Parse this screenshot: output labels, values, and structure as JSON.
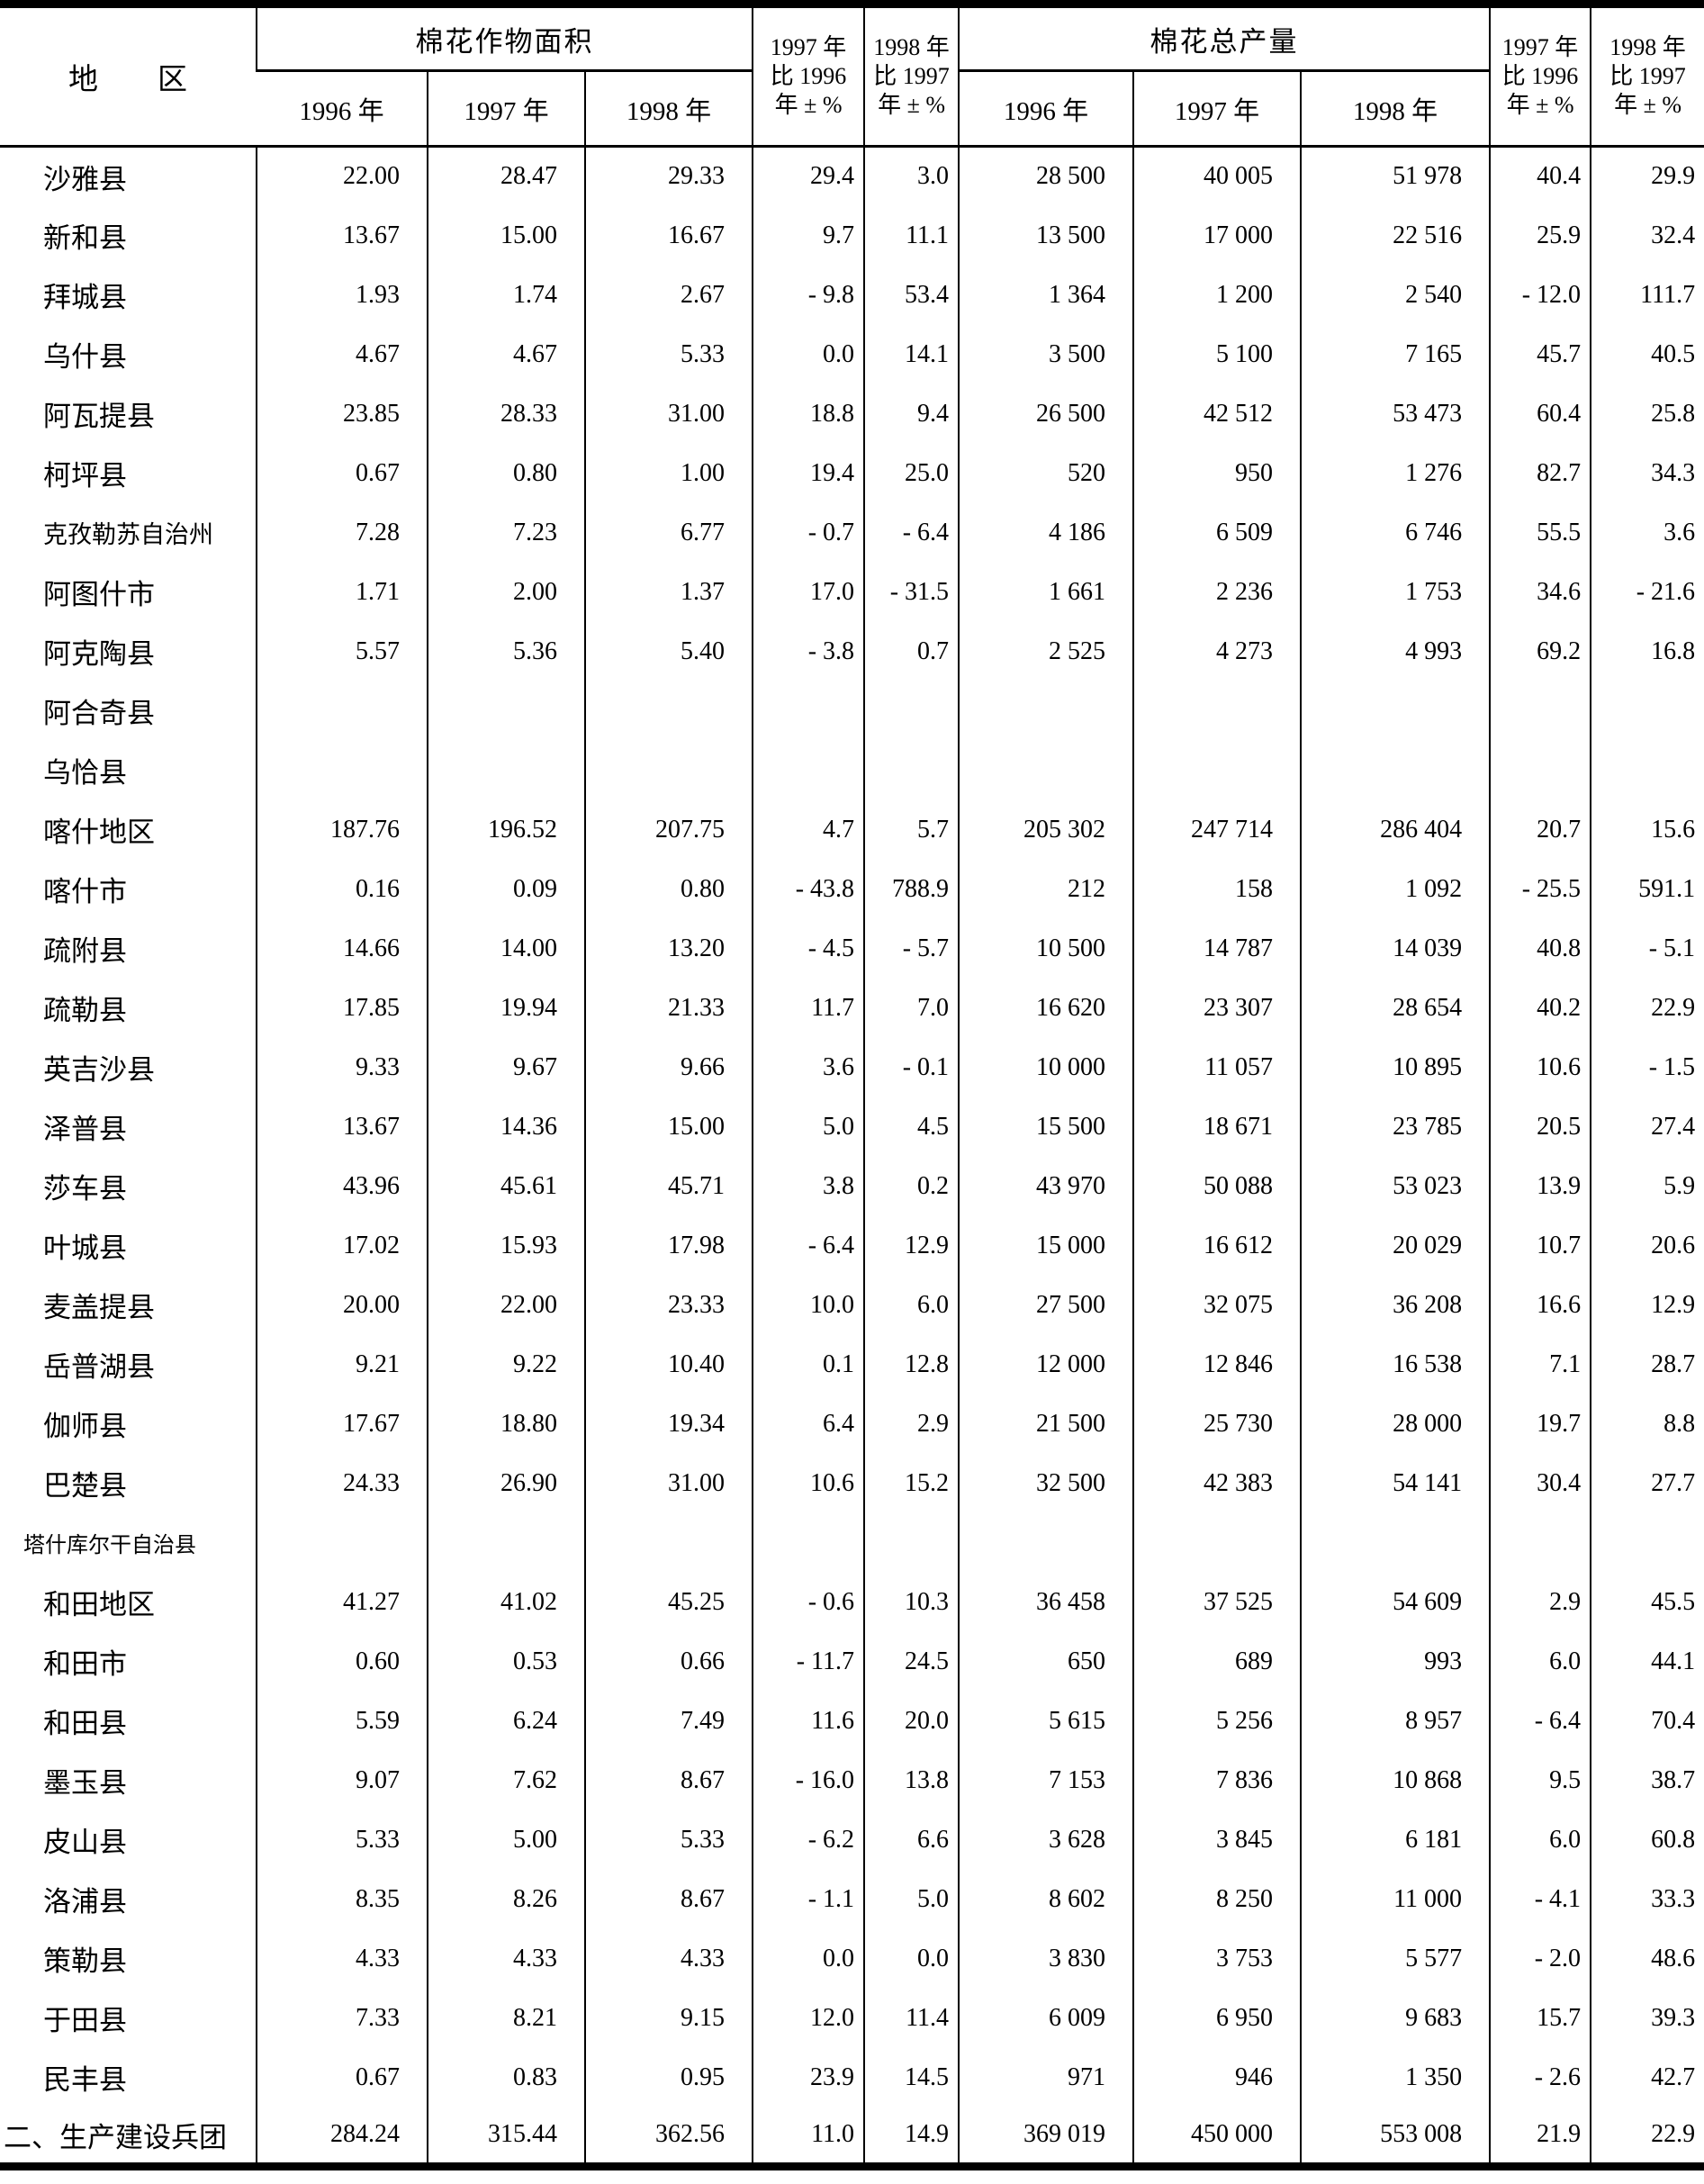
{
  "page": {
    "background": "#ffffff",
    "text_color": "#000000"
  },
  "table": {
    "columns": [
      "region",
      "area_1996",
      "area_1997",
      "area_1998",
      "area_pct_1997_vs_1996",
      "area_pct_1998_vs_1997",
      "prod_1996",
      "prod_1997",
      "prod_1998",
      "prod_pct_1997_vs_1996",
      "prod_pct_1998_vs_1997"
    ],
    "header": {
      "region": "地　　区",
      "area_group": "棉花作物面积",
      "production_group": "棉花总产量",
      "area_years": [
        "1996 年",
        "1997 年",
        "1998 年"
      ],
      "production_years": [
        "1996 年",
        "1997 年",
        "1998 年"
      ],
      "pct_1997_vs_1996": "1997 年\n比 1996\n年 ± %",
      "pct_1998_vs_1997": "1998 年\n比 1997\n年 ± %"
    },
    "rows": [
      {
        "region": "沙雅县",
        "cells": [
          "22.00",
          "28.47",
          "29.33",
          "29.4",
          "3.0",
          "28 500",
          "40 005",
          "51 978",
          "40.4",
          "29.9"
        ]
      },
      {
        "region": "新和县",
        "cells": [
          "13.67",
          "15.00",
          "16.67",
          "9.7",
          "11.1",
          "13 500",
          "17 000",
          "22 516",
          "25.9",
          "32.4"
        ]
      },
      {
        "region": "拜城县",
        "cells": [
          "1.93",
          "1.74",
          "2.67",
          "- 9.8",
          "53.4",
          "1 364",
          "1 200",
          "2 540",
          "- 12.0",
          "111.7"
        ]
      },
      {
        "region": "乌什县",
        "cells": [
          "4.67",
          "4.67",
          "5.33",
          "0.0",
          "14.1",
          "3 500",
          "5 100",
          "7 165",
          "45.7",
          "40.5"
        ]
      },
      {
        "region": "阿瓦提县",
        "cells": [
          "23.85",
          "28.33",
          "31.00",
          "18.8",
          "9.4",
          "26 500",
          "42 512",
          "53 473",
          "60.4",
          "25.8"
        ]
      },
      {
        "region": "柯坪县",
        "cells": [
          "0.67",
          "0.80",
          "1.00",
          "19.4",
          "25.0",
          "520",
          "950",
          "1 276",
          "82.7",
          "34.3"
        ]
      },
      {
        "region": "克孜勒苏自治州",
        "cells": [
          "7.28",
          "7.23",
          "6.77",
          "- 0.7",
          "- 6.4",
          "4 186",
          "6 509",
          "6 746",
          "55.5",
          "3.6"
        ]
      },
      {
        "region": "阿图什市",
        "cells": [
          "1.71",
          "2.00",
          "1.37",
          "17.0",
          "- 31.5",
          "1 661",
          "2 236",
          "1 753",
          "34.6",
          "- 21.6"
        ]
      },
      {
        "region": "阿克陶县",
        "cells": [
          "5.57",
          "5.36",
          "5.40",
          "- 3.8",
          "0.7",
          "2 525",
          "4 273",
          "4 993",
          "69.2",
          "16.8"
        ]
      },
      {
        "region": "阿合奇县",
        "cells": [
          "",
          "",
          "",
          "",
          "",
          "",
          "",
          "",
          "",
          ""
        ]
      },
      {
        "region": "乌恰县",
        "cells": [
          "",
          "",
          "",
          "",
          "",
          "",
          "",
          "",
          "",
          ""
        ]
      },
      {
        "region": "喀什地区",
        "cells": [
          "187.76",
          "196.52",
          "207.75",
          "4.7",
          "5.7",
          "205 302",
          "247 714",
          "286 404",
          "20.7",
          "15.6"
        ]
      },
      {
        "region": "喀什市",
        "cells": [
          "0.16",
          "0.09",
          "0.80",
          "- 43.8",
          "788.9",
          "212",
          "158",
          "1 092",
          "- 25.5",
          "591.1"
        ]
      },
      {
        "region": "疏附县",
        "cells": [
          "14.66",
          "14.00",
          "13.20",
          "- 4.5",
          "- 5.7",
          "10 500",
          "14 787",
          "14 039",
          "40.8",
          "- 5.1"
        ]
      },
      {
        "region": "疏勒县",
        "cells": [
          "17.85",
          "19.94",
          "21.33",
          "11.7",
          "7.0",
          "16 620",
          "23 307",
          "28 654",
          "40.2",
          "22.9"
        ]
      },
      {
        "region": "英吉沙县",
        "cells": [
          "9.33",
          "9.67",
          "9.66",
          "3.6",
          "- 0.1",
          "10 000",
          "11 057",
          "10 895",
          "10.6",
          "- 1.5"
        ]
      },
      {
        "region": "泽普县",
        "cells": [
          "13.67",
          "14.36",
          "15.00",
          "5.0",
          "4.5",
          "15 500",
          "18 671",
          "23 785",
          "20.5",
          "27.4"
        ]
      },
      {
        "region": "莎车县",
        "cells": [
          "43.96",
          "45.61",
          "45.71",
          "3.8",
          "0.2",
          "43 970",
          "50 088",
          "53 023",
          "13.9",
          "5.9"
        ]
      },
      {
        "region": "叶城县",
        "cells": [
          "17.02",
          "15.93",
          "17.98",
          "- 6.4",
          "12.9",
          "15 000",
          "16 612",
          "20 029",
          "10.7",
          "20.6"
        ]
      },
      {
        "region": "麦盖提县",
        "cells": [
          "20.00",
          "22.00",
          "23.33",
          "10.0",
          "6.0",
          "27 500",
          "32 075",
          "36 208",
          "16.6",
          "12.9"
        ]
      },
      {
        "region": "岳普湖县",
        "cells": [
          "9.21",
          "9.22",
          "10.40",
          "0.1",
          "12.8",
          "12 000",
          "12 846",
          "16 538",
          "7.1",
          "28.7"
        ]
      },
      {
        "region": "伽师县",
        "cells": [
          "17.67",
          "18.80",
          "19.34",
          "6.4",
          "2.9",
          "21 500",
          "25 730",
          "28 000",
          "19.7",
          "8.8"
        ]
      },
      {
        "region": "巴楚县",
        "cells": [
          "24.33",
          "26.90",
          "31.00",
          "10.6",
          "15.2",
          "32 500",
          "42 383",
          "54 141",
          "30.4",
          "27.7"
        ]
      },
      {
        "region": "塔什库尔干自治县",
        "cells": [
          "",
          "",
          "",
          "",
          "",
          "",
          "",
          "",
          "",
          ""
        ]
      },
      {
        "region": "和田地区",
        "cells": [
          "41.27",
          "41.02",
          "45.25",
          "- 0.6",
          "10.3",
          "36 458",
          "37 525",
          "54 609",
          "2.9",
          "45.5"
        ]
      },
      {
        "region": "和田市",
        "cells": [
          "0.60",
          "0.53",
          "0.66",
          "- 11.7",
          "24.5",
          "650",
          "689",
          "993",
          "6.0",
          "44.1"
        ]
      },
      {
        "region": "和田县",
        "cells": [
          "5.59",
          "6.24",
          "7.49",
          "11.6",
          "20.0",
          "5 615",
          "5 256",
          "8 957",
          "- 6.4",
          "70.4"
        ]
      },
      {
        "region": "墨玉县",
        "cells": [
          "9.07",
          "7.62",
          "8.67",
          "- 16.0",
          "13.8",
          "7 153",
          "7 836",
          "10 868",
          "9.5",
          "38.7"
        ]
      },
      {
        "region": "皮山县",
        "cells": [
          "5.33",
          "5.00",
          "5.33",
          "- 6.2",
          "6.6",
          "3 628",
          "3 845",
          "6 181",
          "6.0",
          "60.8"
        ]
      },
      {
        "region": "洛浦县",
        "cells": [
          "8.35",
          "8.26",
          "8.67",
          "- 1.1",
          "5.0",
          "8 602",
          "8 250",
          "11 000",
          "- 4.1",
          "33.3"
        ]
      },
      {
        "region": "策勒县",
        "cells": [
          "4.33",
          "4.33",
          "4.33",
          "0.0",
          "0.0",
          "3 830",
          "3 753",
          "5 577",
          "- 2.0",
          "48.6"
        ]
      },
      {
        "region": "于田县",
        "cells": [
          "7.33",
          "8.21",
          "9.15",
          "12.0",
          "11.4",
          "6 009",
          "6 950",
          "9 683",
          "15.7",
          "39.3"
        ]
      },
      {
        "region": "民丰县",
        "cells": [
          "0.67",
          "0.83",
          "0.95",
          "23.9",
          "14.5",
          "971",
          "946",
          "1 350",
          "- 2.6",
          "42.7"
        ]
      },
      {
        "region": "二、生产建设兵团",
        "flush": true,
        "cells": [
          "284.24",
          "315.44",
          "362.56",
          "11.0",
          "14.9",
          "369 019",
          "450 000",
          "553 008",
          "21.9",
          "22.9"
        ]
      }
    ]
  }
}
